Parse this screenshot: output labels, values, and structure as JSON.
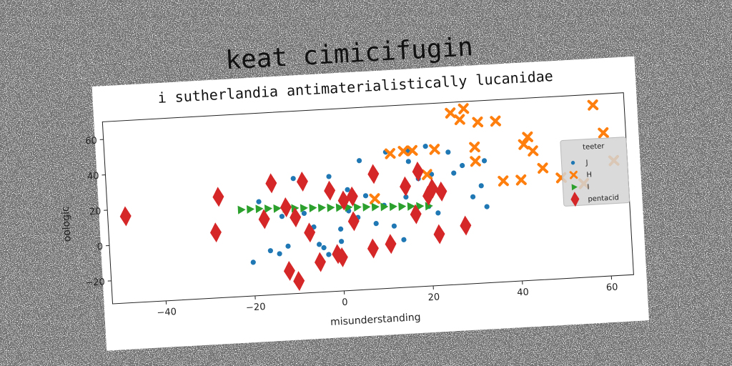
{
  "chart_data": {
    "type": "scatter",
    "title": "keat cimicifugin",
    "subtitle": "i sutherlandia antimaterialistically lucanidae",
    "xlabel": "misunderstanding",
    "ylabel": "oologic",
    "xlim": [
      -52,
      65
    ],
    "ylim": [
      -33,
      70
    ],
    "xticks": [
      -40,
      -20,
      0,
      20,
      40,
      60
    ],
    "yticks": [
      -20,
      0,
      20,
      40,
      60
    ],
    "grid": false,
    "legend": {
      "title": "teeter",
      "position": "center-right"
    },
    "series": [
      {
        "name": "J",
        "marker": "circle",
        "color": "#1f77b4",
        "points": [
          [
            -18,
            20
          ],
          [
            -16,
            -8
          ],
          [
            -13,
            11
          ],
          [
            -12,
            -6
          ],
          [
            -14,
            -10
          ],
          [
            -10,
            32
          ],
          [
            -12,
            18
          ],
          [
            -8,
            12
          ],
          [
            -6,
            4
          ],
          [
            -4,
            -8
          ],
          [
            -3,
            -12
          ],
          [
            -2,
            32
          ],
          [
            0,
            2
          ],
          [
            0,
            -5
          ],
          [
            2,
            12
          ],
          [
            2,
            24
          ],
          [
            4,
            8
          ],
          [
            5,
            40
          ],
          [
            6,
            20
          ],
          [
            8,
            4
          ],
          [
            10,
            14
          ],
          [
            11,
            44
          ],
          [
            12,
            2
          ],
          [
            14,
            -6
          ],
          [
            15,
            18
          ],
          [
            16,
            38
          ],
          [
            18,
            28
          ],
          [
            20,
            46
          ],
          [
            20,
            12
          ],
          [
            21,
            30
          ],
          [
            22,
            8
          ],
          [
            23,
            20
          ],
          [
            25,
            42
          ],
          [
            26,
            30
          ],
          [
            28,
            34
          ],
          [
            30,
            16
          ],
          [
            32,
            22
          ],
          [
            33,
            10
          ],
          [
            33,
            36
          ],
          [
            16,
            44
          ],
          [
            -20,
            -14
          ],
          [
            -5,
            -6
          ]
        ]
      },
      {
        "name": "H",
        "marker": "x",
        "color": "#ff7f0e",
        "points": [
          [
            12,
            43
          ],
          [
            15,
            44
          ],
          [
            17,
            44
          ],
          [
            20,
            30
          ],
          [
            22,
            44
          ],
          [
            26,
            64
          ],
          [
            28,
            60
          ],
          [
            29,
            66
          ],
          [
            31,
            44
          ],
          [
            31,
            36
          ],
          [
            32,
            58
          ],
          [
            36,
            58
          ],
          [
            37,
            24
          ],
          [
            41,
            24
          ],
          [
            42,
            44
          ],
          [
            43,
            48
          ],
          [
            44,
            40
          ],
          [
            46,
            30
          ],
          [
            50,
            24
          ],
          [
            55,
            20
          ],
          [
            58,
            64
          ],
          [
            60,
            48
          ],
          [
            62,
            32
          ],
          [
            16,
            78
          ],
          [
            27,
            77
          ],
          [
            31,
            77
          ],
          [
            8,
            18
          ]
        ]
      },
      {
        "name": "I",
        "marker": "triangle-right",
        "color": "#2ca02c",
        "points": [
          [
            -22,
            16
          ],
          [
            -20,
            16
          ],
          [
            -18,
            16
          ],
          [
            -16,
            15.8
          ],
          [
            -14,
            15.6
          ],
          [
            -12,
            15.4
          ],
          [
            -10,
            15.2
          ],
          [
            -8,
            15
          ],
          [
            -6,
            14.8
          ],
          [
            -4,
            14.6
          ],
          [
            -2,
            14.4
          ],
          [
            0,
            14.2
          ],
          [
            2,
            14
          ],
          [
            4,
            13.8
          ],
          [
            6,
            13.6
          ],
          [
            8,
            13.4
          ],
          [
            10,
            13.2
          ],
          [
            12,
            13
          ],
          [
            14,
            12.8
          ],
          [
            16,
            12.6
          ],
          [
            18,
            12.4
          ],
          [
            20,
            12.2
          ]
        ]
      },
      {
        "name": "pentacid",
        "marker": "diamond",
        "color": "#d62728",
        "points": [
          [
            -48,
            16
          ],
          [
            -27,
            24
          ],
          [
            -28,
            4
          ],
          [
            -17,
            10
          ],
          [
            -15,
            30
          ],
          [
            -12,
            16
          ],
          [
            -12,
            -20
          ],
          [
            -10,
            -26
          ],
          [
            -10,
            10
          ],
          [
            -8,
            30
          ],
          [
            -7,
            1
          ],
          [
            -5,
            -16
          ],
          [
            -2,
            24
          ],
          [
            -1,
            -12
          ],
          [
            0,
            -14
          ],
          [
            1,
            18
          ],
          [
            3,
            20
          ],
          [
            3,
            6
          ],
          [
            7,
            -10
          ],
          [
            8,
            32
          ],
          [
            11,
            -8
          ],
          [
            15,
            24
          ],
          [
            17,
            8
          ],
          [
            18,
            32
          ],
          [
            20,
            18
          ],
          [
            21,
            22
          ],
          [
            22,
            -4
          ],
          [
            23,
            20
          ],
          [
            28,
            0
          ]
        ]
      }
    ]
  }
}
